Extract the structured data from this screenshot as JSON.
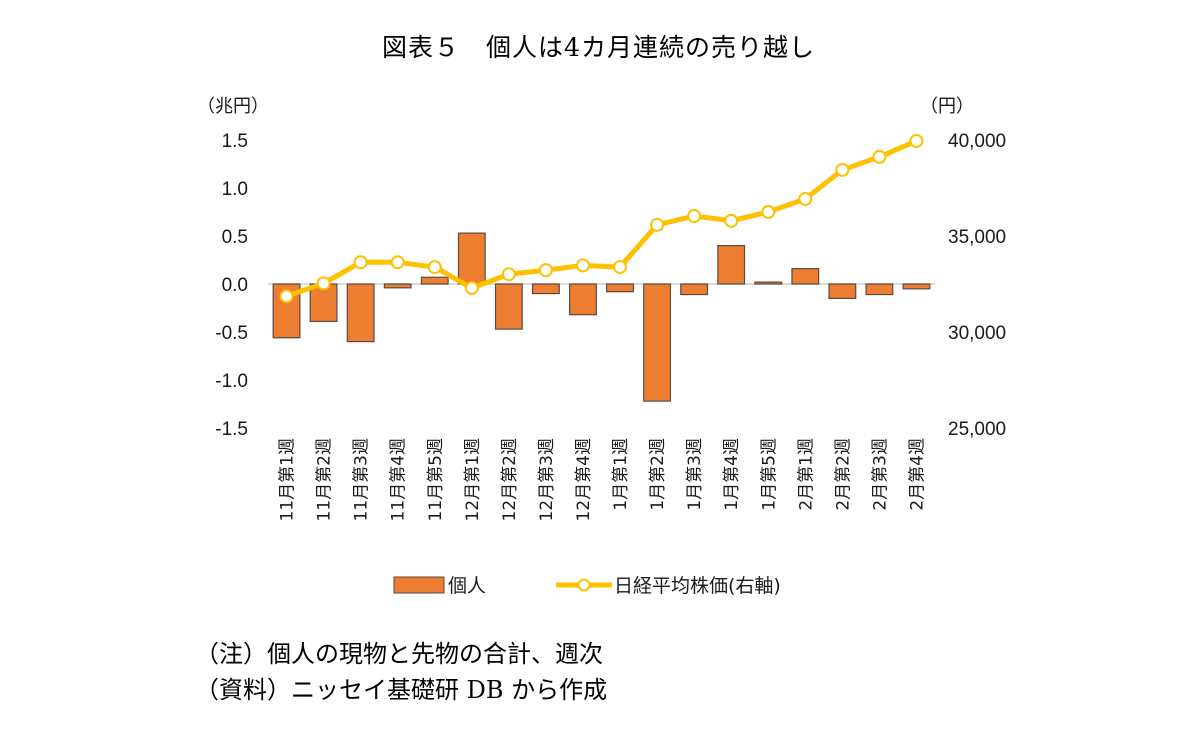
{
  "chart_data": {
    "type": "bar",
    "title": "図表５　個人は4カ月連続の売り越し",
    "left_axis": {
      "unit_label": "（兆円）",
      "ylim": [
        -1.5,
        1.5
      ],
      "ticks": [
        "1.5",
        "1.0",
        "0.5",
        "0.0",
        "-0.5",
        "-1.0",
        "-1.5"
      ],
      "tick_values": [
        1.5,
        1.0,
        0.5,
        0.0,
        -0.5,
        -1.0,
        -1.5
      ]
    },
    "right_axis": {
      "unit_label": "（円）",
      "ylim": [
        25000,
        40000
      ],
      "ticks": [
        "40,000",
        "35,000",
        "30,000",
        "25,000"
      ],
      "tick_values": [
        40000,
        35000,
        30000,
        25000
      ]
    },
    "categories": [
      "11月第1週",
      "11月第2週",
      "11月第3週",
      "11月第4週",
      "11月第5週",
      "12月第1週",
      "12月第2週",
      "12月第3週",
      "12月第4週",
      "1月第1週",
      "1月第2週",
      "1月第3週",
      "1月第4週",
      "1月第5週",
      "2月第1週",
      "2月第2週",
      "2月第3週",
      "2月第4週"
    ],
    "series": [
      {
        "name": "個人",
        "type": "bar",
        "axis": "left",
        "color": "#ED7D31",
        "edge": "#5a4a42",
        "values": [
          -0.56,
          -0.39,
          -0.6,
          -0.04,
          0.07,
          0.53,
          -0.47,
          -0.1,
          -0.32,
          -0.08,
          -1.22,
          -0.11,
          0.4,
          0.02,
          0.16,
          -0.15,
          -0.11,
          -0.05
        ]
      },
      {
        "name": "日経平均株価(右軸)",
        "type": "line",
        "axis": "right",
        "color": "#FFC000",
        "values": [
          31860,
          32530,
          33630,
          33630,
          33380,
          32290,
          33010,
          33220,
          33470,
          33380,
          35580,
          36040,
          35790,
          36250,
          36930,
          38440,
          39120,
          39950
        ]
      }
    ],
    "legend": {
      "position": "bottom",
      "entries": [
        "個人",
        "日経平均株価(右軸)"
      ]
    },
    "grid": false
  },
  "notes": [
    "（注）個人の現物と先物の合計、週次",
    "（資料）ニッセイ基礎研 DB から作成"
  ]
}
